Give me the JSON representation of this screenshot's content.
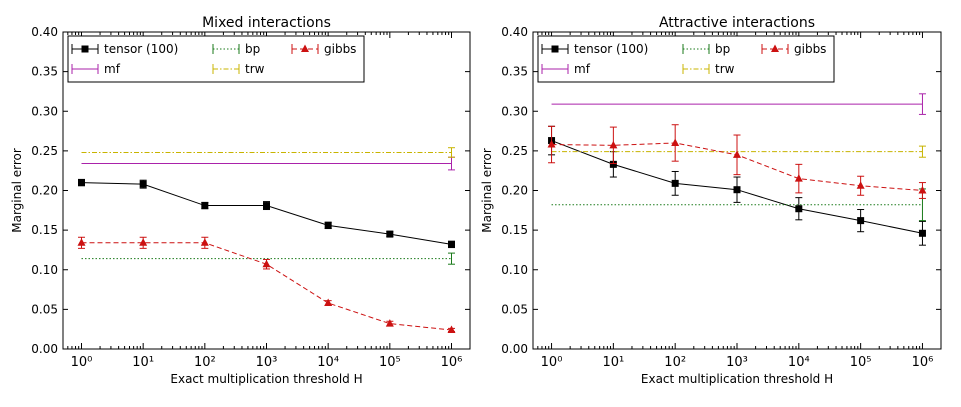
{
  "chart_data": [
    {
      "type": "line",
      "title": "Mixed interactions",
      "xlabel": "Exact multiplication threshold H",
      "ylabel": "Marginal error",
      "x_scale": "log",
      "x": [
        1,
        10,
        100,
        1000,
        10000,
        100000,
        1000000
      ],
      "x_tick_labels": [
        "10⁰",
        "10¹",
        "10²",
        "10³",
        "10⁴",
        "10⁵",
        "10⁶"
      ],
      "y_ticks": [
        "0.00",
        "0.05",
        "0.10",
        "0.15",
        "0.20",
        "0.25",
        "0.30",
        "0.35",
        "0.40"
      ],
      "ylim": [
        0,
        0.4
      ],
      "grid": false,
      "legend_position": "top",
      "series": [
        {
          "name": "tensor (100)",
          "color": "#000000",
          "style": "solid",
          "marker": "square",
          "values": [
            0.21,
            0.208,
            0.181,
            0.181,
            0.156,
            0.145,
            0.132
          ],
          "errors": [
            0.004,
            0.005,
            0.004,
            0.005,
            0.004,
            0.003,
            0.004
          ]
        },
        {
          "name": "mf",
          "color": "#aa22aa",
          "style": "solid",
          "marker": "none",
          "constant": true,
          "values": [
            0.234,
            0.234,
            0.234,
            0.234,
            0.234,
            0.234,
            0.234
          ],
          "end_error": 0.008
        },
        {
          "name": "bp",
          "color": "#1a7a1a",
          "style": "dotted",
          "marker": "none",
          "constant": true,
          "values": [
            0.114,
            0.114,
            0.114,
            0.114,
            0.114,
            0.114,
            0.114
          ],
          "end_error": 0.007
        },
        {
          "name": "trw",
          "color": "#c8b400",
          "style": "dashdot",
          "marker": "none",
          "constant": true,
          "values": [
            0.248,
            0.248,
            0.248,
            0.248,
            0.248,
            0.248,
            0.248
          ],
          "end_error": 0.006
        },
        {
          "name": "gibbs",
          "color": "#cc1111",
          "style": "dashed",
          "marker": "triangle",
          "values": [
            0.134,
            0.134,
            0.134,
            0.107,
            0.058,
            0.032,
            0.024
          ],
          "errors": [
            0.007,
            0.007,
            0.007,
            0.006,
            0.003,
            0.003,
            0.002
          ]
        }
      ]
    },
    {
      "type": "line",
      "title": "Attractive interactions",
      "xlabel": "Exact multiplication threshold H",
      "ylabel": "Marginal error",
      "x_scale": "log",
      "x": [
        1,
        10,
        100,
        1000,
        10000,
        100000,
        1000000
      ],
      "x_tick_labels": [
        "10⁰",
        "10¹",
        "10²",
        "10³",
        "10⁴",
        "10⁵",
        "10⁶"
      ],
      "y_ticks": [
        "0.00",
        "0.05",
        "0.10",
        "0.15",
        "0.20",
        "0.25",
        "0.30",
        "0.35",
        "0.40"
      ],
      "ylim": [
        0,
        0.4
      ],
      "grid": false,
      "legend_position": "top",
      "series": [
        {
          "name": "tensor (100)",
          "color": "#000000",
          "style": "solid",
          "marker": "square",
          "values": [
            0.263,
            0.233,
            0.209,
            0.201,
            0.177,
            0.162,
            0.146
          ],
          "errors": [
            0.018,
            0.016,
            0.015,
            0.016,
            0.014,
            0.014,
            0.015
          ]
        },
        {
          "name": "mf",
          "color": "#aa22aa",
          "style": "solid",
          "marker": "none",
          "constant": true,
          "values": [
            0.309,
            0.309,
            0.309,
            0.309,
            0.309,
            0.309,
            0.309
          ],
          "end_error": 0.013
        },
        {
          "name": "bp",
          "color": "#1a7a1a",
          "style": "dotted",
          "marker": "none",
          "constant": true,
          "values": [
            0.182,
            0.182,
            0.182,
            0.182,
            0.182,
            0.182,
            0.182
          ],
          "end_error": 0.02
        },
        {
          "name": "trw",
          "color": "#c8b400",
          "style": "dashdot",
          "marker": "none",
          "constant": true,
          "values": [
            0.249,
            0.249,
            0.249,
            0.249,
            0.249,
            0.249,
            0.249
          ],
          "end_error": 0.007
        },
        {
          "name": "gibbs",
          "color": "#cc1111",
          "style": "dashed",
          "marker": "triangle",
          "values": [
            0.258,
            0.257,
            0.26,
            0.245,
            0.215,
            0.206,
            0.2
          ],
          "errors": [
            0.023,
            0.023,
            0.023,
            0.025,
            0.018,
            0.012,
            0.01
          ]
        }
      ]
    }
  ]
}
